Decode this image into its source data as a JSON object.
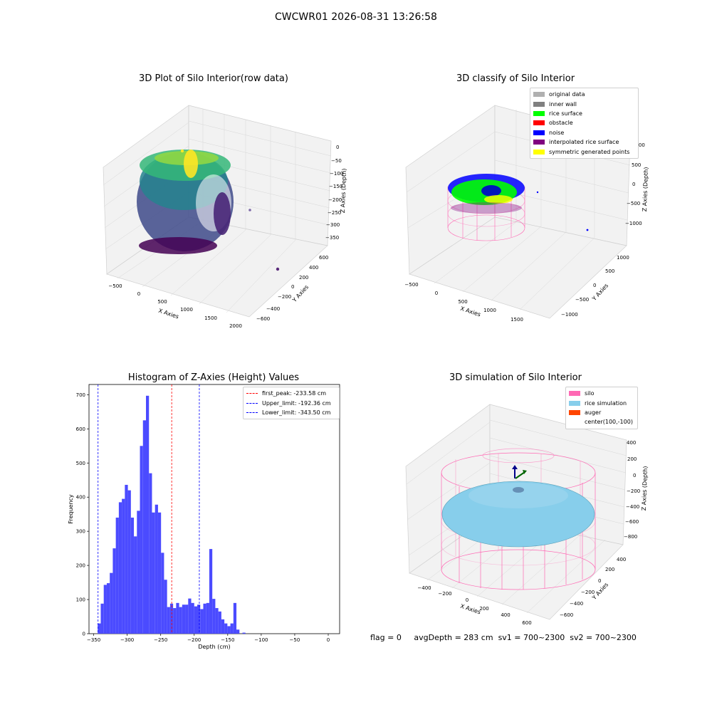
{
  "figure": {
    "suptitle": "CWCWR01 2026-08-31 13:26:58",
    "footer": {
      "flag": "flag = 0",
      "avg_depth": "avgDepth = 283 cm",
      "sv1": "sv1 = 700~2300",
      "sv2": "sv2 = 700~2300"
    }
  },
  "panels": {
    "raw": {
      "title": "3D Plot of Silo Interior(row data)",
      "xlabel": "X Axies",
      "ylabel": "Y Axies",
      "zlabel": "Z Axies (Depth)",
      "xticks": [
        "−500",
        "0",
        "500",
        "1000",
        "1500",
        "2000"
      ],
      "yticks": [
        "600",
        "400",
        "200",
        "0",
        "−200",
        "−400",
        "−600"
      ],
      "zticks": [
        "0",
        "−50",
        "−100",
        "−150",
        "−200",
        "−250",
        "−300",
        "−350"
      ]
    },
    "classify": {
      "title": "3D classify of Silo Interior",
      "xlabel": "X Axies",
      "ylabel": "Y Axies",
      "zlabel": "Z Axies (Depth)",
      "xticks": [
        "−500",
        "0",
        "500",
        "1000",
        "1500"
      ],
      "yticks": [
        "1000",
        "500",
        "0",
        "−500",
        "−1000"
      ],
      "zticks": [
        "1000",
        "500",
        "0",
        "−500",
        "−1000"
      ],
      "legend": [
        {
          "label": "original data",
          "color": "#b0b0b0"
        },
        {
          "label": "inner wall",
          "color": "#808080"
        },
        {
          "label": "rice surface",
          "color": "#00ff00"
        },
        {
          "label": "obstacle",
          "color": "#ff0000"
        },
        {
          "label": "noise",
          "color": "#0000ff"
        },
        {
          "label": "interpolated rice surface",
          "color": "#800080"
        },
        {
          "label": "symmetric generated points",
          "color": "#ffff00"
        }
      ]
    },
    "simulation": {
      "title": "3D simulation of Silo Interior",
      "xlabel": "X Axies",
      "ylabel": "Y Axies",
      "zlabel": "Z Axies (Depth)",
      "xticks": [
        "−400",
        "−200",
        "0",
        "200",
        "400",
        "600"
      ],
      "yticks": [
        "400",
        "200",
        "0",
        "−200",
        "−400",
        "−600"
      ],
      "zticks": [
        "400",
        "200",
        "0",
        "−200",
        "−400",
        "−600",
        "−800"
      ],
      "legend": [
        {
          "label": "silo",
          "color": "#ff69b4"
        },
        {
          "label": "rice simulation",
          "color": "#87ceeb"
        },
        {
          "label": "auger",
          "color": "#ff4500"
        },
        {
          "label": "center(100,-100)",
          "color": ""
        }
      ]
    }
  },
  "chart_data": [
    {
      "type": "bar",
      "title": "Histogram of Z-Axies (Height) Values",
      "xlabel": "Depth (cm)",
      "ylabel": "Frequency",
      "bar_color": "#4b4bff",
      "bin_start": -344,
      "bin_width": 4.5,
      "values": [
        30,
        88,
        143,
        148,
        178,
        250,
        340,
        385,
        395,
        436,
        420,
        340,
        285,
        360,
        550,
        625,
        697,
        470,
        355,
        378,
        355,
        237,
        158,
        78,
        88,
        75,
        90,
        78,
        85,
        85,
        103,
        90,
        80,
        85,
        72,
        88,
        90,
        248,
        102,
        75,
        65,
        42,
        30,
        22,
        30,
        90,
        12,
        0,
        3
      ],
      "xlim": [
        -357,
        17
      ],
      "ylim": [
        0,
        730
      ],
      "xticks": [
        -350,
        -300,
        -250,
        -200,
        -150,
        -100,
        -50,
        0
      ],
      "yticks": [
        0,
        100,
        200,
        300,
        400,
        500,
        600,
        700
      ],
      "vlines": [
        {
          "label": "first_peak: -233.58 cm",
          "x": -233.58,
          "color": "#ff0000"
        },
        {
          "label": "Upper_limit: -192.36 cm",
          "x": -192.36,
          "color": "#0000ff"
        },
        {
          "label": "Lower_limit: -343.50 cm",
          "x": -343.5,
          "color": "#0000ff"
        }
      ]
    }
  ]
}
